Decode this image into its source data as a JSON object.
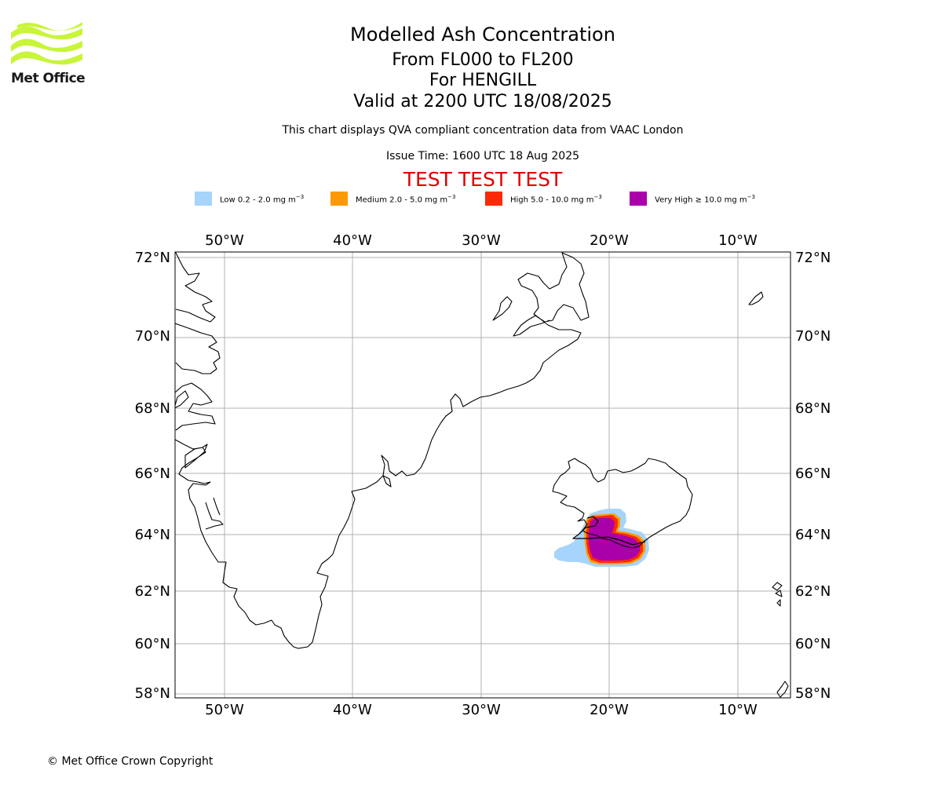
{
  "logo": {
    "text": "Met Office",
    "icon": "met-office-waves-logo",
    "color": "#c8f53a"
  },
  "titles": {
    "main": "Modelled Ash Concentration",
    "levels": "From FL000 to FL200",
    "volcano": "For HENGILL",
    "valid": "Valid at 2200 UTC 18/08/2025",
    "description": "This chart displays QVA compliant concentration data from VAAC London",
    "issue_time": "Issue Time: 1600 UTC 18 Aug 2025",
    "test_banner": "TEST TEST TEST"
  },
  "legend": [
    {
      "label": "Low 0.2 - 2.0 mg m",
      "exp": "−3",
      "color": "#a6d4fb"
    },
    {
      "label": "Medium 2.0 - 5.0 mg m",
      "exp": "−3",
      "color": "#fb9a05"
    },
    {
      "label": "High 5.0 - 10.0 mg m",
      "exp": "−3",
      "color": "#fb2a05"
    },
    {
      "label": "Very High  ≥  10.0 mg m",
      "exp": "−3",
      "color": "#aa00aa"
    }
  ],
  "map": {
    "lon_ticks": [
      "50°W",
      "40°W",
      "30°W",
      "20°W",
      "10°W"
    ],
    "lat_ticks": [
      "72°N",
      "70°N",
      "68°N",
      "66°N",
      "64°N",
      "62°N",
      "60°N",
      "58°N"
    ],
    "grid_color": "#b0b0b0",
    "coastline_color": "#000000"
  },
  "copyright": "© Met Office Crown Copyright"
}
